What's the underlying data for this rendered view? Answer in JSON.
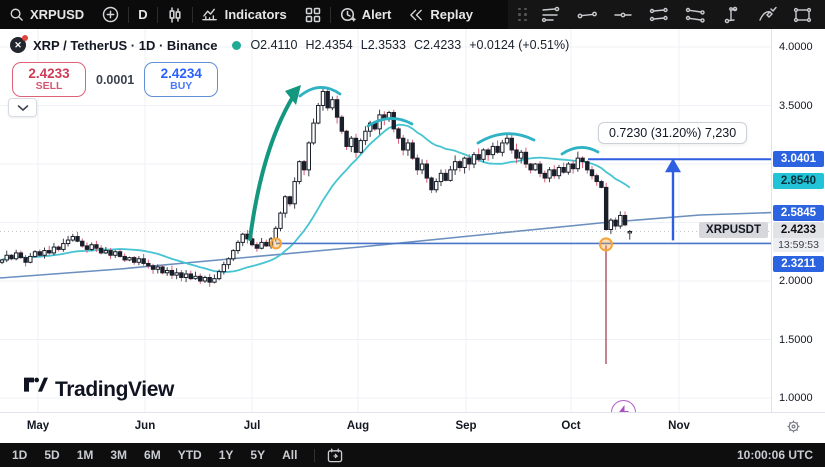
{
  "topbar": {
    "symbol": "XRPUSD",
    "interval": "D",
    "indicators": "Indicators",
    "alert": "Alert",
    "replay": "Replay"
  },
  "legend": {
    "title": "XRP / TetherUS · 1D · Binance",
    "open": "O2.4110",
    "high": "H2.4354",
    "low": "L2.3533",
    "close": "C2.4233",
    "change": "+0.0124 (+0.51%)"
  },
  "order_panel": {
    "sell_price": "2.4233",
    "sell_label": "SELL",
    "spread": "0.0001",
    "buy_price": "2.4234",
    "buy_label": "BUY"
  },
  "measure_tooltip": "0.7230 (31.20%) 7,230",
  "price_axis": {
    "plain": [
      {
        "label": "4.0000",
        "price": 4.0
      },
      {
        "label": "3.5000",
        "price": 3.5
      },
      {
        "label": "2.0000",
        "price": 2.0
      },
      {
        "label": "1.5000",
        "price": 1.5
      },
      {
        "label": "1.0000",
        "price": 1.0
      }
    ],
    "badges": [
      {
        "label": "3.0401",
        "price": 3.0401,
        "style": "blue"
      },
      {
        "label": "2.8540",
        "price": 2.854,
        "style": "cyan"
      },
      {
        "label": "2.5845",
        "price": 2.5845,
        "style": "blue"
      },
      {
        "label": "2.3211",
        "price": 2.3211,
        "style": "blue"
      }
    ],
    "current": {
      "symbol_tag": "XRPUSDT",
      "price_label": "2.4233",
      "countdown": "13:59:53",
      "price": 2.4233
    }
  },
  "time_axis": {
    "months": [
      "May",
      "Jun",
      "Jul",
      "Aug",
      "Sep",
      "Oct",
      "Nov"
    ]
  },
  "bottom_bar": {
    "ranges": [
      "1D",
      "5D",
      "1M",
      "3M",
      "6M",
      "YTD",
      "1Y",
      "5Y",
      "All"
    ],
    "clock": "10:00:06 UTC"
  },
  "logo": "TradingView",
  "chart_data": {
    "type": "candlestick",
    "symbol": "XRP/USDT",
    "exchange": "Binance",
    "interval": "1D",
    "last_candle": {
      "open": 2.411,
      "high": 2.4354,
      "low": 2.3533,
      "close": 2.4233
    },
    "y_gridlines": [
      4.0,
      3.5,
      3.0,
      2.5,
      2.0,
      1.5,
      1.0
    ],
    "ylim": [
      0.95,
      4.1
    ],
    "levels": {
      "resistance": 3.0401,
      "support": 2.3211,
      "fast_ma_last": 2.854,
      "slow_ma_last": 2.5845,
      "current": 2.4233
    },
    "measurement": {
      "value": 0.723,
      "percent": 31.2,
      "bars": 7230
    },
    "closes": [
      2.18,
      2.22,
      2.19,
      2.24,
      2.2,
      2.16,
      2.21,
      2.25,
      2.22,
      2.26,
      2.24,
      2.29,
      2.27,
      2.32,
      2.35,
      2.38,
      2.34,
      2.3,
      2.27,
      2.31,
      2.28,
      2.24,
      2.26,
      2.22,
      2.25,
      2.21,
      2.18,
      2.2,
      2.16,
      2.19,
      2.15,
      2.13,
      2.1,
      2.12,
      2.07,
      2.09,
      2.05,
      2.07,
      2.03,
      2.06,
      2.02,
      2.04,
      2.0,
      2.03,
      1.99,
      2.02,
      2.08,
      2.14,
      2.19,
      2.26,
      2.33,
      2.4,
      2.36,
      2.31,
      2.28,
      2.33,
      2.3,
      2.36,
      2.45,
      2.58,
      2.72,
      2.66,
      2.85,
      3.02,
      2.95,
      3.18,
      3.35,
      3.5,
      3.62,
      3.48,
      3.55,
      3.4,
      3.28,
      3.15,
      3.22,
      3.1,
      3.2,
      3.28,
      3.35,
      3.3,
      3.42,
      3.38,
      3.44,
      3.3,
      3.22,
      3.12,
      3.18,
      3.05,
      2.95,
      3.0,
      2.88,
      2.78,
      2.85,
      2.92,
      2.86,
      2.95,
      3.02,
      2.97,
      3.05,
      3.0,
      3.08,
      3.04,
      3.12,
      3.08,
      3.15,
      3.1,
      3.18,
      3.22,
      3.12,
      3.05,
      3.1,
      3.0,
      2.95,
      3.0,
      2.92,
      2.88,
      2.95,
      2.9,
      2.97,
      2.93,
      3.0,
      2.96,
      3.05,
      3.02,
      2.95,
      2.9,
      2.85,
      2.8,
      2.44,
      2.52,
      2.47,
      2.56,
      2.48,
      2.4233
    ]
  }
}
